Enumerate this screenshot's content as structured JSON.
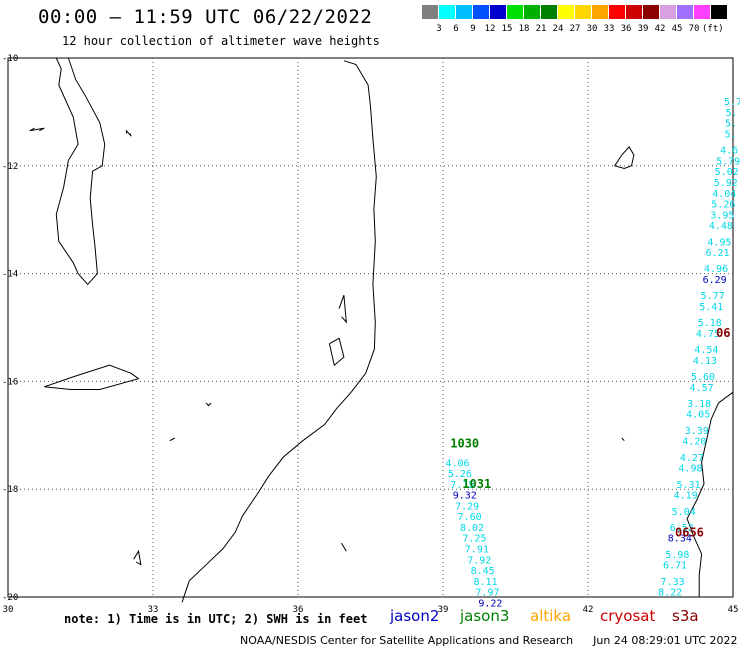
{
  "header": {
    "title": "00:00 – 11:59 UTC 06/22/2022",
    "subtitle": "12 hour collection of altimeter wave heights"
  },
  "legend": {
    "unit": "(ft)",
    "bins": [
      {
        "label": "",
        "color": "#808080"
      },
      {
        "label": "3",
        "color": "#00ffff"
      },
      {
        "label": "6",
        "color": "#00bfff"
      },
      {
        "label": "9",
        "color": "#0050ff"
      },
      {
        "label": "12",
        "color": "#0000cd"
      },
      {
        "label": "15",
        "color": "#00e000"
      },
      {
        "label": "18",
        "color": "#00b000"
      },
      {
        "label": "21",
        "color": "#008000"
      },
      {
        "label": "24",
        "color": "#ffff00"
      },
      {
        "label": "27",
        "color": "#ffd700"
      },
      {
        "label": "30",
        "color": "#ffa500"
      },
      {
        "label": "33",
        "color": "#ff0000"
      },
      {
        "label": "36",
        "color": "#cc0000"
      },
      {
        "label": "39",
        "color": "#8b0000"
      },
      {
        "label": "42",
        "color": "#d8a0e0"
      },
      {
        "label": "45",
        "color": "#a070ff"
      },
      {
        "label": "70",
        "color": "#ff40ff"
      },
      {
        "label": "",
        "color": "#000000"
      }
    ]
  },
  "axes": {
    "lon_ticks": [
      "30",
      "33",
      "36",
      "39",
      "42",
      "45"
    ],
    "lat_ticks": [
      "-10",
      "-12",
      "-14",
      "-16",
      "-18",
      "-20"
    ]
  },
  "tracks": {
    "left": {
      "color_cyan": "#00d8e8",
      "color_blue": "#0000c0",
      "points": [
        {
          "lon": 39.3,
          "lat": -17.5,
          "v": "4.06",
          "c": "cyan"
        },
        {
          "lon": 39.35,
          "lat": -17.7,
          "v": "5.26",
          "c": "cyan"
        },
        {
          "lon": 39.4,
          "lat": -17.9,
          "v": "7.15",
          "c": "cyan"
        },
        {
          "lon": 39.45,
          "lat": -18.1,
          "v": "9.32",
          "c": "blue"
        },
        {
          "lon": 39.5,
          "lat": -18.3,
          "v": "7.29",
          "c": "cyan"
        },
        {
          "lon": 39.55,
          "lat": -18.5,
          "v": "7.60",
          "c": "cyan"
        },
        {
          "lon": 39.6,
          "lat": -18.7,
          "v": "8.02",
          "c": "cyan"
        },
        {
          "lon": 39.65,
          "lat": -18.9,
          "v": "7.25",
          "c": "cyan"
        },
        {
          "lon": 39.7,
          "lat": -19.1,
          "v": "7.91",
          "c": "cyan"
        },
        {
          "lon": 39.75,
          "lat": -19.3,
          "v": "7.92",
          "c": "cyan"
        },
        {
          "lon": 39.82,
          "lat": -19.5,
          "v": "8.45",
          "c": "cyan"
        },
        {
          "lon": 39.88,
          "lat": -19.7,
          "v": "8.11",
          "c": "cyan"
        },
        {
          "lon": 39.92,
          "lat": -19.9,
          "v": "7.97",
          "c": "cyan"
        },
        {
          "lon": 39.98,
          "lat": -20.1,
          "v": "9.22",
          "c": "blue"
        }
      ]
    },
    "right": {
      "color_cyan": "#00d8e8",
      "color_blue": "#0000c0",
      "points": [
        {
          "lon": 45.0,
          "lat": -10.8,
          "v": "5.7",
          "c": "cyan"
        },
        {
          "lon": 44.97,
          "lat": -11.0,
          "v": "5.",
          "c": "cyan"
        },
        {
          "lon": 44.96,
          "lat": -11.2,
          "v": "5.",
          "c": "cyan"
        },
        {
          "lon": 44.95,
          "lat": -11.4,
          "v": "5.",
          "c": "cyan"
        },
        {
          "lon": 44.92,
          "lat": -11.7,
          "v": "4.6",
          "c": "cyan"
        },
        {
          "lon": 44.9,
          "lat": -11.9,
          "v": "5.79",
          "c": "cyan"
        },
        {
          "lon": 44.87,
          "lat": -12.1,
          "v": "5.02",
          "c": "cyan"
        },
        {
          "lon": 44.85,
          "lat": -12.3,
          "v": "5.92",
          "c": "cyan"
        },
        {
          "lon": 44.82,
          "lat": -12.5,
          "v": "4.04",
          "c": "cyan"
        },
        {
          "lon": 44.8,
          "lat": -12.7,
          "v": "5.26",
          "c": "cyan"
        },
        {
          "lon": 44.78,
          "lat": -12.9,
          "v": "3.95",
          "c": "cyan"
        },
        {
          "lon": 44.75,
          "lat": -13.1,
          "v": "4.48",
          "c": "cyan"
        },
        {
          "lon": 44.72,
          "lat": -13.4,
          "v": "4.95",
          "c": "cyan"
        },
        {
          "lon": 44.68,
          "lat": -13.6,
          "v": "6.21",
          "c": "cyan"
        },
        {
          "lon": 44.65,
          "lat": -13.9,
          "v": "4.96",
          "c": "cyan"
        },
        {
          "lon": 44.62,
          "lat": -14.1,
          "v": "6.29",
          "c": "blue"
        },
        {
          "lon": 44.58,
          "lat": -14.4,
          "v": "5.77",
          "c": "cyan"
        },
        {
          "lon": 44.55,
          "lat": -14.6,
          "v": "5.41",
          "c": "cyan"
        },
        {
          "lon": 44.52,
          "lat": -14.9,
          "v": "5.18",
          "c": "cyan"
        },
        {
          "lon": 44.48,
          "lat": -15.1,
          "v": "4.75",
          "c": "cyan"
        },
        {
          "lon": 44.45,
          "lat": -15.4,
          "v": "4.54",
          "c": "cyan"
        },
        {
          "lon": 44.42,
          "lat": -15.6,
          "v": "4.13",
          "c": "cyan"
        },
        {
          "lon": 44.38,
          "lat": -15.9,
          "v": "5.60",
          "c": "cyan"
        },
        {
          "lon": 44.35,
          "lat": -16.1,
          "v": "4.57",
          "c": "cyan"
        },
        {
          "lon": 44.3,
          "lat": -16.4,
          "v": "3.18",
          "c": "cyan"
        },
        {
          "lon": 44.28,
          "lat": -16.6,
          "v": "4.05",
          "c": "cyan"
        },
        {
          "lon": 44.25,
          "lat": -16.9,
          "v": "3.39",
          "c": "cyan"
        },
        {
          "lon": 44.2,
          "lat": -17.1,
          "v": "4.20",
          "c": "cyan"
        },
        {
          "lon": 44.15,
          "lat": -17.4,
          "v": "4.27",
          "c": "cyan"
        },
        {
          "lon": 44.12,
          "lat": -17.6,
          "v": "4.98",
          "c": "cyan"
        },
        {
          "lon": 44.08,
          "lat": -17.9,
          "v": "5.31",
          "c": "cyan"
        },
        {
          "lon": 44.02,
          "lat": -18.1,
          "v": "4.19",
          "c": "cyan"
        },
        {
          "lon": 43.98,
          "lat": -18.4,
          "v": "5.04",
          "c": "cyan"
        },
        {
          "lon": 43.94,
          "lat": -18.7,
          "v": "6.52",
          "c": "cyan"
        },
        {
          "lon": 43.9,
          "lat": -18.9,
          "v": "8.34",
          "c": "blue"
        },
        {
          "lon": 43.85,
          "lat": -19.2,
          "v": "5.98",
          "c": "cyan"
        },
        {
          "lon": 43.8,
          "lat": -19.4,
          "v": "6.71",
          "c": "cyan"
        },
        {
          "lon": 43.75,
          "lat": -19.7,
          "v": "7.33",
          "c": "cyan"
        },
        {
          "lon": 43.7,
          "lat": -19.9,
          "v": "8.22",
          "c": "cyan"
        }
      ]
    }
  },
  "time_labels": [
    {
      "text": "1030",
      "lon": 39.15,
      "lat": -17.15,
      "color": "#008000"
    },
    {
      "text": "1031",
      "lon": 39.4,
      "lat": -17.9,
      "color": "#008000"
    },
    {
      "text": "06",
      "lon": 44.65,
      "lat": -15.1,
      "color": "#8b0000"
    },
    {
      "text": "0656",
      "lon": 43.8,
      "lat": -18.8,
      "color": "#8b0000"
    }
  ],
  "coast": {
    "mainland": [
      [
        36.95,
        -10.05
      ],
      [
        37.2,
        -10.12
      ],
      [
        37.45,
        -10.5
      ],
      [
        37.5,
        -10.9
      ],
      [
        37.55,
        -11.5
      ],
      [
        37.62,
        -12.2
      ],
      [
        37.57,
        -12.8
      ],
      [
        37.6,
        -13.4
      ],
      [
        37.55,
        -14.2
      ],
      [
        37.6,
        -14.9
      ],
      [
        37.58,
        -15.4
      ],
      [
        37.4,
        -15.85
      ],
      [
        37.1,
        -16.2
      ],
      [
        36.8,
        -16.5
      ],
      [
        36.55,
        -16.8
      ],
      [
        36.1,
        -17.1
      ],
      [
        35.7,
        -17.4
      ],
      [
        35.4,
        -17.75
      ],
      [
        35.15,
        -18.1
      ],
      [
        34.85,
        -18.5
      ],
      [
        34.7,
        -18.8
      ],
      [
        34.45,
        -19.1
      ],
      [
        34.1,
        -19.4
      ],
      [
        33.75,
        -19.7
      ],
      [
        33.6,
        -20.1
      ]
    ],
    "malawi": [
      [
        31.0,
        -10.0
      ],
      [
        31.1,
        -10.2
      ],
      [
        31.05,
        -10.5
      ],
      [
        31.35,
        -11.1
      ],
      [
        31.45,
        -11.6
      ],
      [
        31.25,
        -11.9
      ],
      [
        31.15,
        -12.4
      ],
      [
        31.0,
        -12.9
      ],
      [
        31.05,
        -13.4
      ],
      [
        31.35,
        -13.8
      ],
      [
        31.45,
        -14.0
      ],
      [
        31.65,
        -14.2
      ],
      [
        31.85,
        -14.0
      ],
      [
        31.8,
        -13.5
      ],
      [
        31.75,
        -13.1
      ],
      [
        31.7,
        -12.6
      ],
      [
        31.75,
        -12.1
      ],
      [
        31.95,
        -12.0
      ],
      [
        32.0,
        -11.6
      ],
      [
        31.9,
        -11.2
      ],
      [
        31.6,
        -10.7
      ],
      [
        31.4,
        -10.4
      ],
      [
        31.25,
        -10.0
      ]
    ],
    "madagascar": [
      [
        45.0,
        -16.2
      ],
      [
        44.7,
        -16.4
      ],
      [
        44.55,
        -16.7
      ],
      [
        44.45,
        -17.1
      ],
      [
        44.35,
        -17.5
      ],
      [
        44.4,
        -17.9
      ],
      [
        44.25,
        -18.2
      ],
      [
        44.05,
        -18.55
      ],
      [
        44.2,
        -18.9
      ],
      [
        44.35,
        -19.2
      ],
      [
        44.3,
        -19.6
      ],
      [
        44.3,
        -20.0
      ]
    ],
    "islands": [
      [
        [
          32.45,
          -11.4
        ],
        [
          32.45,
          -11.35
        ],
        [
          32.55,
          -11.45
        ],
        [
          32.52,
          -11.4
        ]
      ],
      [
        [
          30.55,
          -11.3
        ],
        [
          30.45,
          -11.35
        ],
        [
          30.75,
          -11.3
        ],
        [
          30.65,
          -11.35
        ]
      ],
      [
        [
          42.55,
          -12.0
        ],
        [
          42.7,
          -11.8
        ],
        [
          42.85,
          -11.65
        ],
        [
          42.95,
          -11.8
        ],
        [
          42.9,
          -12.0
        ],
        [
          42.75,
          -12.05
        ],
        [
          42.55,
          -12.0
        ]
      ],
      [
        [
          30.75,
          -16.1
        ],
        [
          31.4,
          -15.9
        ],
        [
          32.1,
          -15.7
        ],
        [
          32.55,
          -15.85
        ],
        [
          32.7,
          -15.95
        ],
        [
          31.9,
          -16.15
        ],
        [
          31.3,
          -16.15
        ],
        [
          30.75,
          -16.1
        ]
      ],
      [
        [
          32.6,
          -19.3
        ],
        [
          32.7,
          -19.15
        ],
        [
          32.75,
          -19.4
        ],
        [
          32.65,
          -19.35
        ]
      ],
      [
        [
          36.85,
          -14.65
        ],
        [
          36.95,
          -14.4
        ],
        [
          37.0,
          -14.9
        ],
        [
          36.9,
          -14.8
        ]
      ],
      [
        [
          36.65,
          -15.3
        ],
        [
          36.85,
          -15.2
        ],
        [
          36.95,
          -15.55
        ],
        [
          36.75,
          -15.7
        ],
        [
          36.65,
          -15.3
        ]
      ],
      [
        [
          34.1,
          -16.4
        ],
        [
          34.15,
          -16.45
        ],
        [
          34.2,
          -16.4
        ]
      ],
      [
        [
          33.35,
          -17.1
        ],
        [
          33.45,
          -17.05
        ]
      ],
      [
        [
          42.7,
          -17.05
        ],
        [
          42.75,
          -17.1
        ]
      ],
      [
        [
          36.9,
          -19.0
        ],
        [
          37.0,
          -19.15
        ]
      ]
    ],
    "coast_color": "#000000"
  },
  "satellites": [
    {
      "name": "jason2",
      "color": "#0000c0"
    },
    {
      "name": "jason3",
      "color": "#008000"
    },
    {
      "name": "altika",
      "color": "#ffa500"
    },
    {
      "name": "cryosat",
      "color": "#cc0000"
    },
    {
      "name": "s3a",
      "color": "#8b0000"
    }
  ],
  "footer": {
    "note": "note: 1) Time is in UTC; 2) SWH is in feet",
    "credit": "NOAA/NESDIS Center for Satellite Applications and Research",
    "timestamp": "Jun 24 08:29:01 UTC 2022"
  }
}
